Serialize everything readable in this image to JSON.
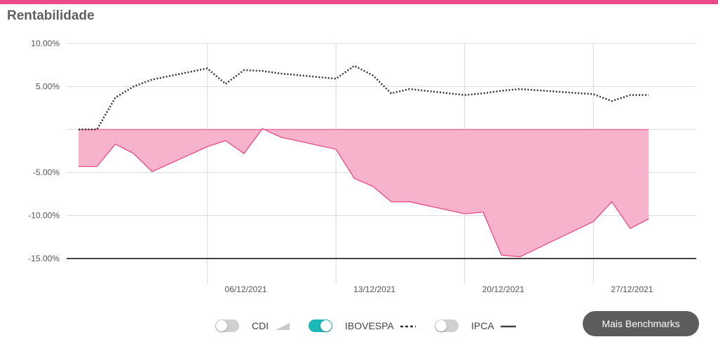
{
  "header": {
    "title": "Rentabilidade",
    "accent_color": "#ec4a86"
  },
  "colors": {
    "fund_area_fill": "#f7b3cb",
    "fund_line": "#ec4a86",
    "ibovespa_line": "#333333",
    "zero_line_and_ipca": "#444444",
    "grid": "#d9d9d9",
    "toggle_on": "#1bb8b8",
    "toggle_off": "#d0d0d0",
    "button_bg": "#5c5c5c"
  },
  "legend": {
    "cdi": {
      "label": "CDI",
      "enabled": false,
      "swatch": "area-triangle"
    },
    "ibovespa": {
      "label": "IBOVESPA",
      "enabled": true,
      "swatch": "dotted-line"
    },
    "ipca": {
      "label": "IPCA",
      "enabled": false,
      "swatch": "solid-line"
    }
  },
  "buttons": {
    "benchmarks_label": "Mais Benchmarks"
  },
  "chart_data": {
    "type": "area",
    "title": "Rentabilidade",
    "xlabel": "",
    "ylabel": "",
    "x_ticks": [
      "06/12/2021",
      "13/12/2021",
      "20/12/2021",
      "27/12/2021"
    ],
    "y_ticks": [
      "10.00%",
      "5.00%",
      "-5.00%",
      "-10.00%",
      "-15.00%"
    ],
    "ylim": [
      -15,
      10
    ],
    "grid": true,
    "x": [
      "29/11/2021",
      "30/11/2021",
      "01/12/2021",
      "02/12/2021",
      "03/12/2021",
      "06/12/2021",
      "07/12/2021",
      "08/12/2021",
      "09/12/2021",
      "10/12/2021",
      "13/12/2021",
      "14/12/2021",
      "15/12/2021",
      "16/12/2021",
      "17/12/2021",
      "20/12/2021",
      "21/12/2021",
      "22/12/2021",
      "23/12/2021",
      "27/12/2021",
      "28/12/2021",
      "29/12/2021",
      "30/12/2021"
    ],
    "series": [
      {
        "name": "",
        "style": "area",
        "values": [
          -4.3,
          -4.3,
          -1.7,
          -2.8,
          -4.9,
          -2.0,
          -1.3,
          -2.8,
          0.1,
          -0.9,
          -2.3,
          -5.7,
          -6.6,
          -8.4,
          -8.4,
          -9.8,
          -9.6,
          -14.6,
          -14.8,
          -10.7,
          -8.4,
          -11.5,
          -10.4
        ]
      },
      {
        "name": "IBOVESPA",
        "style": "dotted",
        "values": [
          0.0,
          0.0,
          3.7,
          5.0,
          5.8,
          7.1,
          5.3,
          6.9,
          6.8,
          6.5,
          5.9,
          7.4,
          6.3,
          4.2,
          4.7,
          4.0,
          4.2,
          4.5,
          4.7,
          4.1,
          3.3,
          4.0,
          4.0
        ]
      }
    ]
  }
}
